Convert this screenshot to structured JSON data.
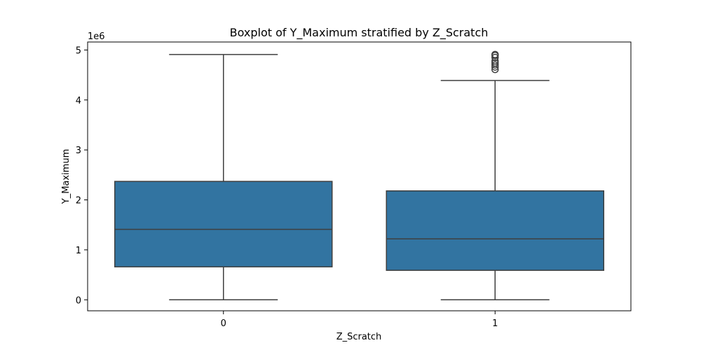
{
  "chart_data": {
    "type": "box",
    "title": "Boxplot of Y_Maximum stratified by Z_Scratch",
    "xlabel": "Z_Scratch",
    "ylabel": "Y_Maximum",
    "y_offset_label": "1e6",
    "categories": [
      "0",
      "1"
    ],
    "ylim": [
      -220000,
      5160000
    ],
    "yticks": [
      0,
      1,
      2,
      3,
      4,
      5
    ],
    "ytick_scale": 1000000,
    "grid": false,
    "box_color": "#3274a1",
    "line_color": "#3f3f3f",
    "boxes": [
      {
        "category": "0",
        "whisker_low": 0,
        "q1": 660000,
        "median": 1410000,
        "q3": 2370000,
        "whisker_high": 4910000,
        "outliers": []
      },
      {
        "category": "1",
        "whisker_low": 0,
        "q1": 590000,
        "median": 1220000,
        "q3": 2180000,
        "whisker_high": 4390000,
        "outliers": [
          4610000,
          4660000,
          4700000,
          4740000,
          4780000,
          4850000,
          4890000,
          4910000
        ]
      }
    ]
  }
}
